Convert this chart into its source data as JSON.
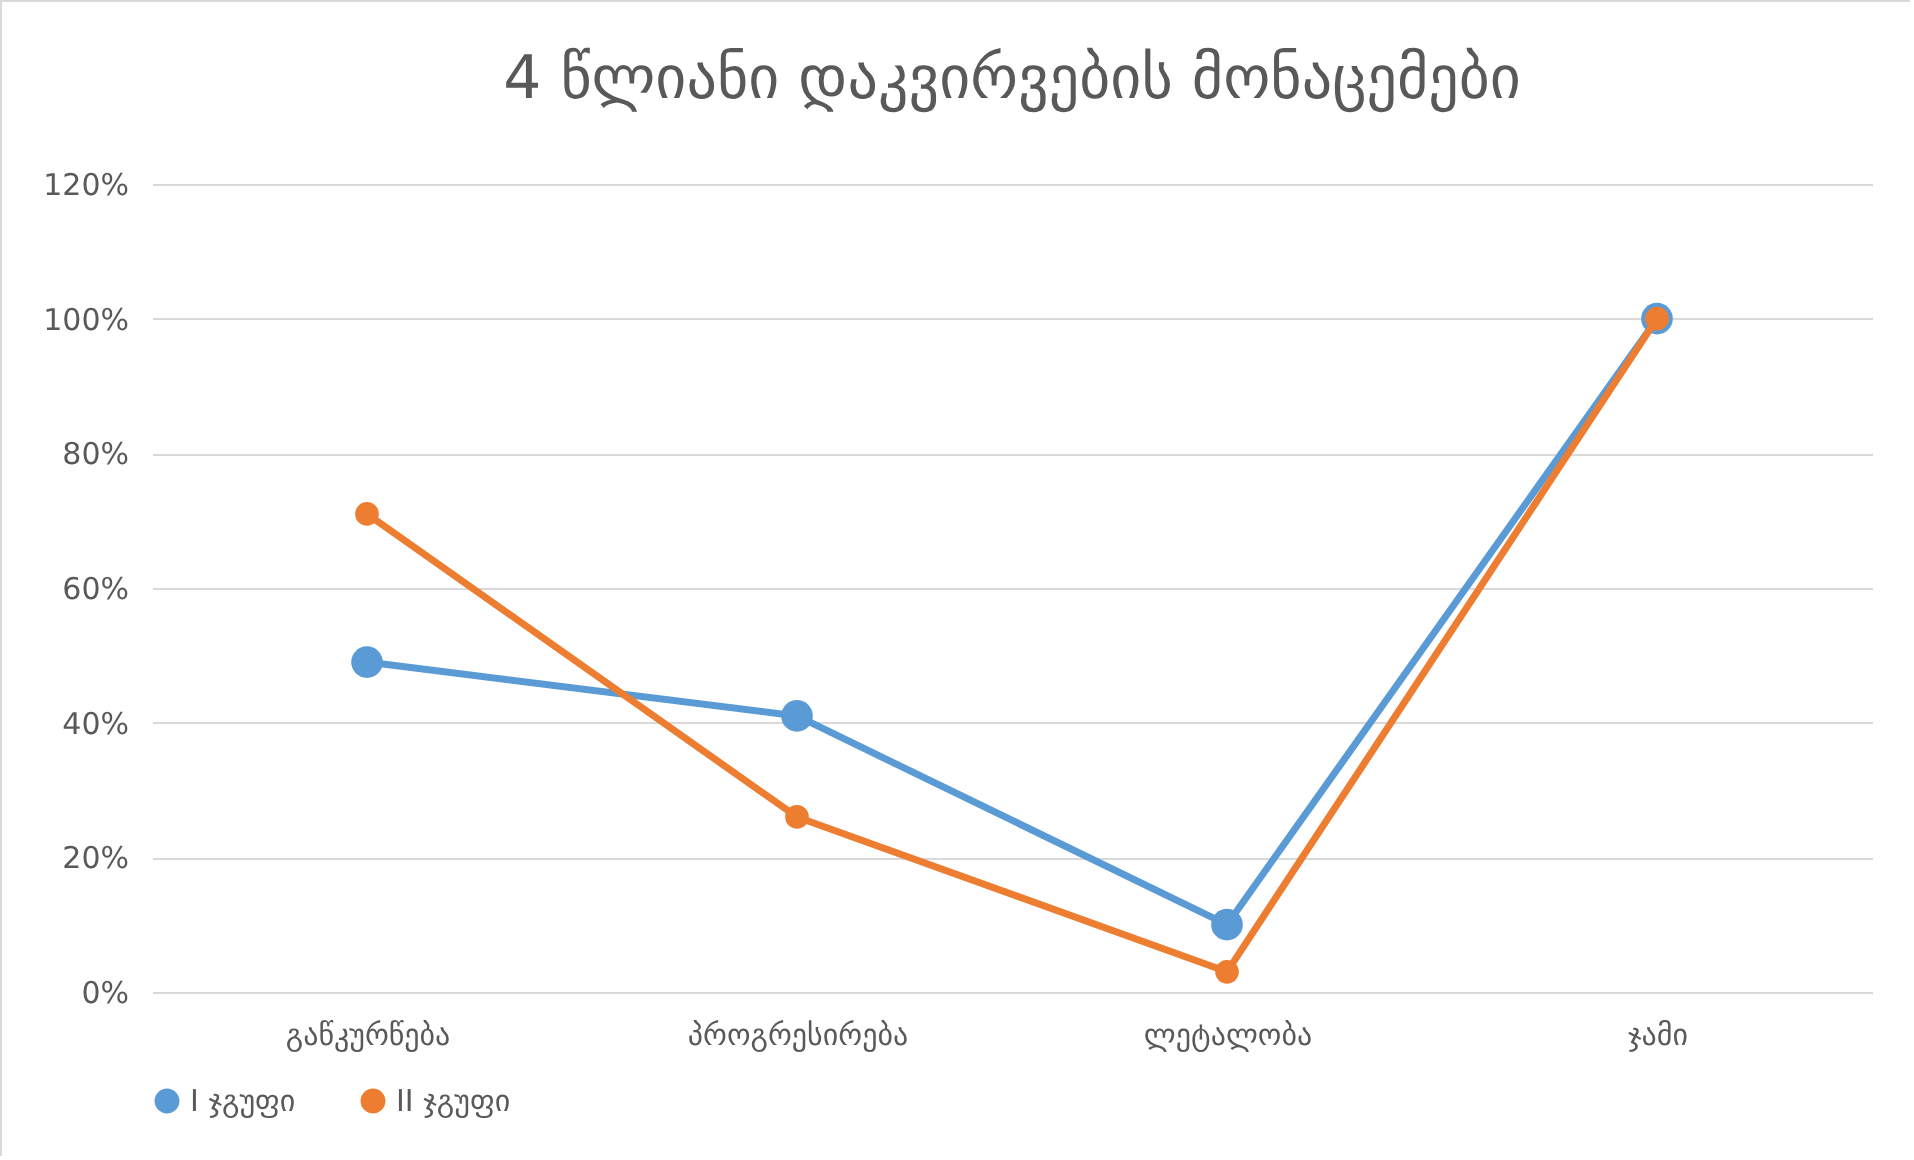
{
  "chart_data": {
    "type": "line",
    "title": "4 წლიანი დაკვირვების მონაცემები",
    "categories": [
      "გაწკურწება",
      "პროგრესირება",
      "ლეტალობა",
      "ჯამი"
    ],
    "series": [
      {
        "name": "I ჯგუფი",
        "color": "#5b9bd5",
        "values": [
          49,
          41,
          10,
          100
        ]
      },
      {
        "name": "II ჯგუფი",
        "color": "#ed7d31",
        "values": [
          71,
          26,
          3,
          100
        ]
      }
    ],
    "ylim": [
      0,
      120
    ],
    "yticks": [
      {
        "value": 0,
        "label": "0%"
      },
      {
        "value": 20,
        "label": "20%"
      },
      {
        "value": 40,
        "label": "40%"
      },
      {
        "value": 60,
        "label": "60%"
      },
      {
        "value": 80,
        "label": "80%"
      },
      {
        "value": 100,
        "label": "100%"
      },
      {
        "value": 120,
        "label": "120%"
      }
    ],
    "grid": "y",
    "legend": "bottom",
    "marker": "circle",
    "line_style": "solid"
  }
}
